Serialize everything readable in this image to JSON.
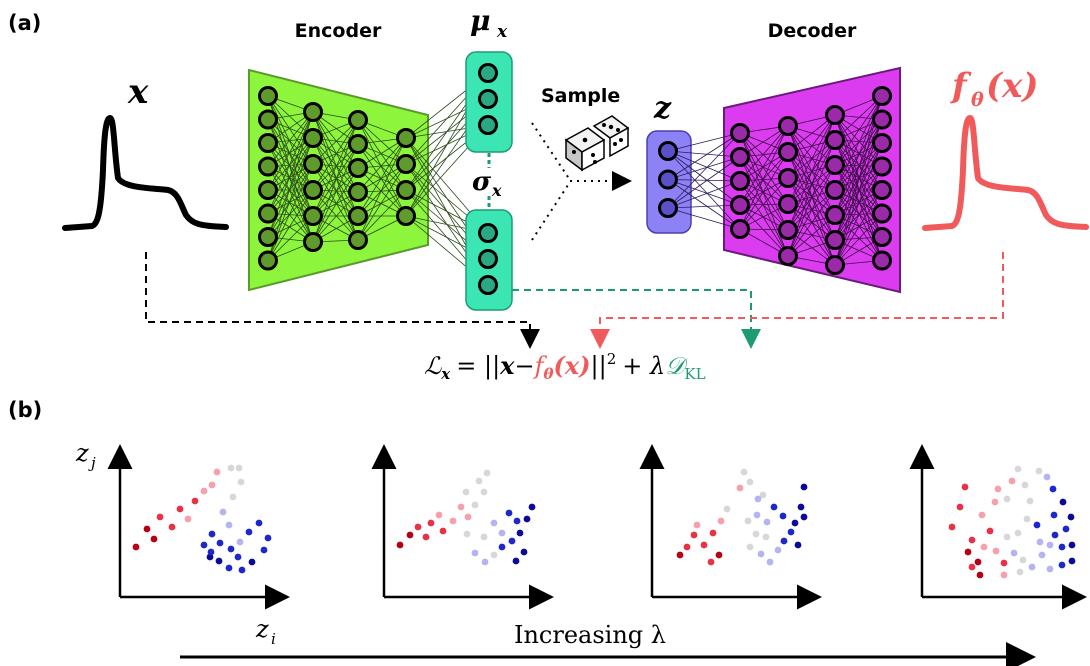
{
  "panel_a": {
    "panel_label": "(a)",
    "encoder_label": "Encoder",
    "decoder_label": "Decoder",
    "sample_label": "Sample",
    "input_symbol": "x",
    "mu_label": "μ",
    "mu_sub": "x",
    "sigma_label": "σ",
    "sigma_sub": "x",
    "latent_symbol": "z",
    "output_label": "f",
    "output_sub": "θ",
    "output_arg": "(x)",
    "loss": {
      "lhs": "ℒ",
      "lhs_sub": "x",
      "eq": "= ||",
      "x": "x",
      "minus": "−",
      "f_term": "f",
      "f_sub": "θ",
      "f_arg": "(x)",
      "norm_end": "||",
      "sq": "2",
      "plus": "+ λ",
      "kl": "𝒟",
      "kl_sub": "KL"
    },
    "colors": {
      "encoder": "#8cf53c",
      "decoder": "#dc3cf0",
      "latent_stats": "#3ce6b4",
      "latent_z": "#8c82f5",
      "output_curve": "#f05a5a",
      "kl_arrow": "#1e9b73",
      "recon_arrow": "#f05a5a"
    }
  },
  "panel_b": {
    "panel_label": "(b)",
    "y_axis_label": "z",
    "y_axis_sub": "j",
    "x_axis_label": "z",
    "x_axis_sub": "i",
    "caption": "Increasing λ",
    "colors": {
      "dark_red": "#b40014",
      "red": "#e63246",
      "pink": "#f5a0aa",
      "gray": "#d7d7d7",
      "lavender": "#b4b4f0",
      "blue": "#1e28c8",
      "dark_blue": "#0a0a96"
    }
  }
}
